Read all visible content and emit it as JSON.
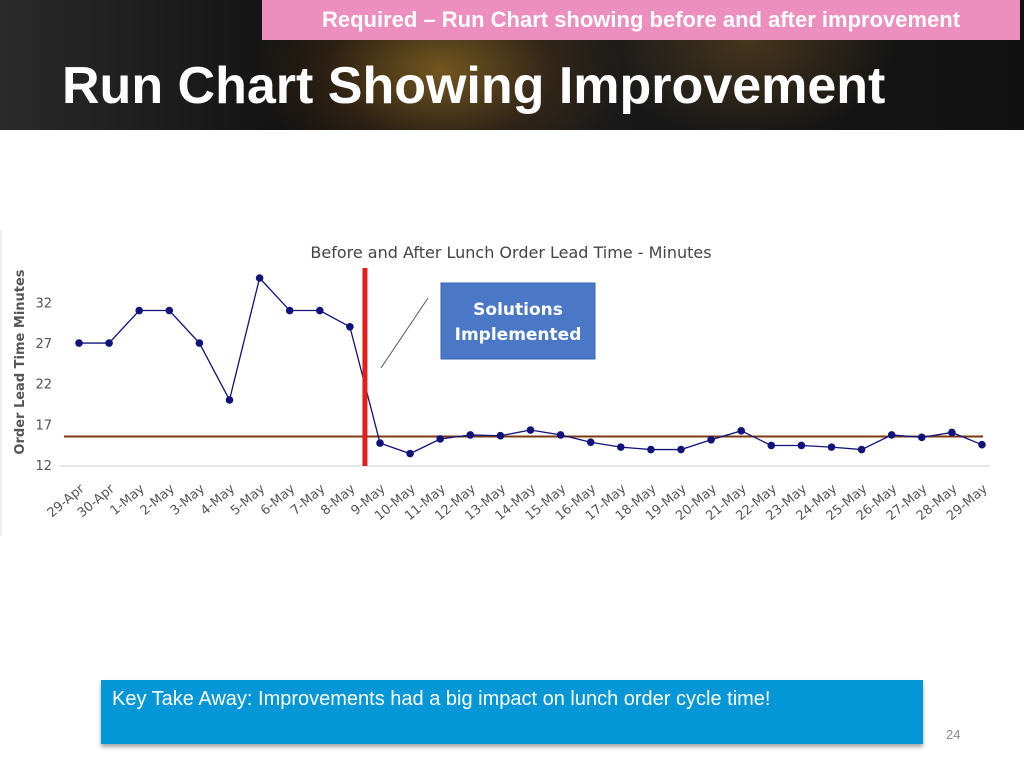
{
  "header": {
    "required_tag": "Required – Run Chart showing before and after improvement",
    "title": "Run Chart Showing Improvement"
  },
  "chart_data": {
    "type": "line",
    "title": "Before and After Lunch Order Lead Time - Minutes",
    "ylabel": "Order Lead Time Minutes",
    "xlabel": "",
    "ylim": [
      12,
      35
    ],
    "yticks": [
      12,
      17,
      22,
      27,
      32
    ],
    "categories": [
      "29-Apr",
      "30-Apr",
      "1-May",
      "2-May",
      "3-May",
      "4-May",
      "5-May",
      "6-May",
      "7-May",
      "8-May",
      "9-May",
      "10-May",
      "11-May",
      "12-May",
      "13-May",
      "14-May",
      "15-May",
      "16-May",
      "17-May",
      "18-May",
      "19-May",
      "20-May",
      "21-May",
      "22-May",
      "23-May",
      "24-May",
      "25-May",
      "26-May",
      "27-May",
      "28-May",
      "29-May"
    ],
    "series": [
      {
        "values": [
          27.0,
          27.0,
          31.0,
          31.0,
          27.0,
          20.0,
          35.0,
          31.0,
          31.0,
          29.0,
          14.7,
          13.4,
          15.2,
          15.7,
          15.6,
          16.3,
          15.7,
          14.8,
          14.2,
          13.9,
          13.9,
          15.1,
          16.2,
          14.4,
          14.4,
          14.2,
          13.9,
          15.7,
          15.4,
          16.0,
          14.5
        ],
        "color": "#12137a"
      }
    ],
    "reference_line": {
      "value": 15.5,
      "color": "#7b3b10"
    },
    "improvement_marker": {
      "after_category": "8-May",
      "color": "#e0201b"
    },
    "callout": {
      "lines": [
        "Solutions",
        "Implemented"
      ],
      "fill": "#4a78c7"
    },
    "grid": false
  },
  "takeaway": {
    "text": "Key Take Away: Improvements had a big impact on lunch order cycle time!"
  },
  "page_number": "24"
}
